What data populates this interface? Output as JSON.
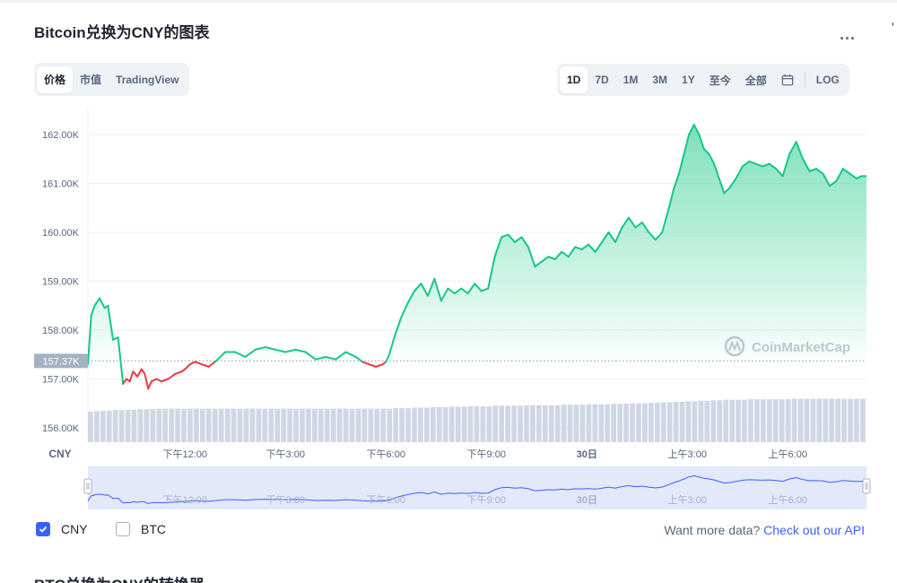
{
  "header": {
    "title": "Bitcoin兑换为CNY的图表",
    "more_label": "..."
  },
  "chart_tabs": [
    {
      "label": "价格",
      "active": true
    },
    {
      "label": "市值",
      "active": false
    },
    {
      "label": "TradingView",
      "active": false
    }
  ],
  "range_tabs": [
    {
      "label": "1D",
      "active": true
    },
    {
      "label": "7D",
      "active": false
    },
    {
      "label": "1M",
      "active": false
    },
    {
      "label": "3M",
      "active": false
    },
    {
      "label": "1Y",
      "active": false
    },
    {
      "label": "至今",
      "active": false
    },
    {
      "label": "全部",
      "active": false
    }
  ],
  "log_label": "LOG",
  "chart_data": {
    "type": "area",
    "title": "",
    "xlabel": "",
    "ylabel": "",
    "ylim": [
      155900,
      162400
    ],
    "yticks": [
      156000,
      157000,
      158000,
      159000,
      160000,
      161000,
      162000
    ],
    "ytick_labels": [
      "156.00K",
      "157.00K",
      "158.00K",
      "159.00K",
      "160.00K",
      "161.00K",
      "162.00K"
    ],
    "currency_label": "CNY",
    "xticks": [
      {
        "t": 1.0,
        "label": "下午12:00",
        "bold": false
      },
      {
        "t": 4.0,
        "label": "下午3:00",
        "bold": false
      },
      {
        "t": 7.0,
        "label": "下午6:00",
        "bold": false
      },
      {
        "t": 10.0,
        "label": "下午9:00",
        "bold": false
      },
      {
        "t": 13.0,
        "label": "30日",
        "bold": true
      },
      {
        "t": 16.0,
        "label": "上午3:00",
        "bold": false
      },
      {
        "t": 19.0,
        "label": "上午6:00",
        "bold": false
      }
    ],
    "xlim": [
      -1.9,
      21.35
    ],
    "baseline_value": 157370,
    "baseline_label": "157.37K",
    "colors": {
      "up": "#16c784",
      "down": "#ea3943",
      "volume": "#cfd6e4",
      "nav_line": "#3861fb"
    },
    "watermark": "CoinMarketCap",
    "series": [
      {
        "x": [
          -1.9,
          -1.8,
          -1.7,
          -1.55,
          -1.4,
          -1.3,
          -1.15,
          -1.0,
          -0.85,
          -0.75,
          -0.65,
          -0.55,
          -0.42,
          -0.3,
          -0.2,
          -0.1,
          0.0,
          0.15,
          0.3,
          0.5,
          0.7,
          0.9,
          1.0,
          1.15,
          1.3,
          1.5,
          1.7,
          1.9,
          2.2,
          2.5,
          2.8,
          3.1,
          3.4,
          3.7,
          4.0,
          4.3,
          4.6,
          4.9,
          5.2,
          5.5,
          5.8,
          6.1,
          6.3,
          6.5,
          6.7,
          6.9,
          7.0,
          7.1,
          7.25,
          7.45,
          7.65,
          7.85,
          8.05,
          8.25,
          8.45,
          8.65,
          8.85,
          9.05,
          9.25,
          9.45,
          9.65,
          9.85,
          10.05,
          10.25,
          10.45,
          10.65,
          10.85,
          11.05,
          11.25,
          11.45,
          11.65,
          11.85,
          12.05,
          12.25,
          12.45,
          12.65,
          12.85,
          13.05,
          13.25,
          13.45,
          13.65,
          13.85,
          14.05,
          14.25,
          14.45,
          14.65,
          14.85,
          15.05,
          15.25,
          15.45,
          15.6,
          15.75,
          15.9,
          16.05,
          16.2,
          16.35,
          16.5,
          16.65,
          16.8,
          16.95,
          17.1,
          17.25,
          17.45,
          17.65,
          17.85,
          18.05,
          18.25,
          18.45,
          18.65,
          18.85,
          19.05,
          19.25,
          19.45,
          19.65,
          19.85,
          20.05,
          20.25,
          20.45,
          20.65,
          20.85,
          21.05,
          21.2,
          21.35
        ],
        "values": [
          157300,
          158300,
          158500,
          158650,
          158450,
          158500,
          157800,
          157850,
          156900,
          157000,
          156950,
          157150,
          157050,
          157200,
          157100,
          156800,
          156950,
          157000,
          156950,
          157000,
          157100,
          157150,
          157200,
          157300,
          157350,
          157300,
          157250,
          157350,
          157550,
          157550,
          157450,
          157600,
          157650,
          157600,
          157550,
          157600,
          157550,
          157400,
          157450,
          157400,
          157550,
          157450,
          157350,
          157300,
          157250,
          157300,
          157350,
          157500,
          157850,
          158250,
          158550,
          158800,
          158950,
          158700,
          159050,
          158600,
          158850,
          158750,
          158850,
          158750,
          158950,
          158800,
          158850,
          159500,
          159900,
          159950,
          159800,
          159900,
          159700,
          159300,
          159400,
          159500,
          159450,
          159600,
          159500,
          159700,
          159650,
          159750,
          159600,
          159800,
          160000,
          159800,
          160100,
          160300,
          160100,
          160200,
          160000,
          159850,
          160000,
          160500,
          160900,
          161200,
          161600,
          162000,
          162200,
          162000,
          161700,
          161600,
          161400,
          161100,
          160800,
          160900,
          161100,
          161350,
          161450,
          161400,
          161350,
          161400,
          161300,
          161150,
          161600,
          161850,
          161500,
          161250,
          161300,
          161200,
          160950,
          161050,
          161300,
          161200,
          161100,
          161150,
          161150
        ]
      }
    ],
    "volume": [
      0.62,
      0.63,
      0.64,
      0.64,
      0.65,
      0.65,
      0.66,
      0.66,
      0.67,
      0.67,
      0.67,
      0.68,
      0.68,
      0.68,
      0.68,
      0.68,
      0.68,
      0.68,
      0.68,
      0.68,
      0.68,
      0.68,
      0.68,
      0.68,
      0.68,
      0.68,
      0.68,
      0.68,
      0.68,
      0.68,
      0.68,
      0.68,
      0.68,
      0.68,
      0.68,
      0.68,
      0.68,
      0.68,
      0.68,
      0.68,
      0.68,
      0.68,
      0.68,
      0.68,
      0.68,
      0.68,
      0.68,
      0.68,
      0.68,
      0.69,
      0.69,
      0.69,
      0.7,
      0.7,
      0.7,
      0.71,
      0.71,
      0.71,
      0.72,
      0.72,
      0.72,
      0.73,
      0.73,
      0.73,
      0.73,
      0.74,
      0.74,
      0.74,
      0.74,
      0.74,
      0.75,
      0.75,
      0.75,
      0.75,
      0.75,
      0.75,
      0.76,
      0.76,
      0.76,
      0.76,
      0.77,
      0.77,
      0.77,
      0.77,
      0.78,
      0.78,
      0.78,
      0.79,
      0.79,
      0.79,
      0.8,
      0.8,
      0.81,
      0.81,
      0.82,
      0.82,
      0.83,
      0.83,
      0.84,
      0.84,
      0.85,
      0.85,
      0.86,
      0.86,
      0.86,
      0.86,
      0.87,
      0.87,
      0.87,
      0.87,
      0.87,
      0.87,
      0.87,
      0.88,
      0.88,
      0.88,
      0.88,
      0.88,
      0.88,
      0.88,
      0.88,
      0.88,
      0.88,
      0.88,
      0.88
    ]
  },
  "legend": [
    {
      "label": "CNY",
      "checked": true
    },
    {
      "label": "BTC",
      "checked": false
    }
  ],
  "api": {
    "prefix": "Want more data?",
    "link": "Check out our API"
  },
  "next_section_title": "BTC兑换为CNY的转换器"
}
